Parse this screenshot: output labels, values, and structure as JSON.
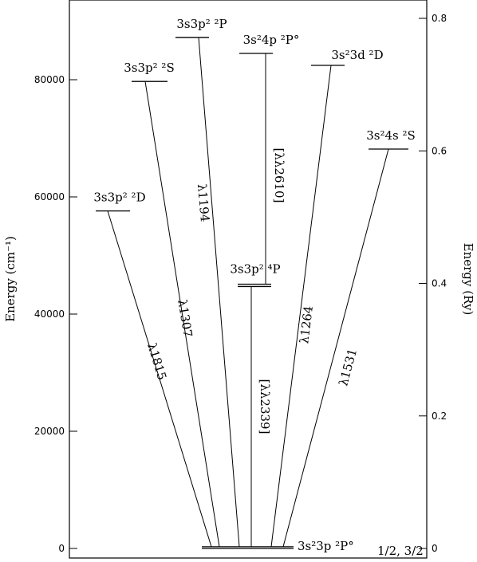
{
  "chart_data": {
    "type": "energy-levels",
    "ylabel": "Energy (cm⁻¹)",
    "y2label": "Energy (Ry)",
    "ylim": [
      -1633,
      93605
    ],
    "yticks": [
      0,
      20000,
      40000,
      60000,
      80000
    ],
    "y2lim": [
      -0.0144,
      0.8277
    ],
    "y2ticks": [
      0,
      0.2,
      0.4,
      0.6,
      0.8
    ],
    "levels": [
      {
        "label": "3s²3p ²P°",
        "sublabel": "1/2, 3/2",
        "energies": [
          0,
          287
        ]
      },
      {
        "label": "3s3p² ²D",
        "energies": [
          57600
        ],
        "transitions": [
          "λ1815"
        ]
      },
      {
        "label": "3s3p² ²S",
        "energies": [
          79700
        ],
        "transitions": [
          "λ1307"
        ]
      },
      {
        "label": "3s3p² ²P",
        "energies": [
          87200
        ],
        "transitions": [
          "λ1194"
        ]
      },
      {
        "label": "3s3p² ⁴P",
        "energies": [
          44700,
          45100
        ],
        "transitions": [
          "[λλ2339]"
        ]
      },
      {
        "label": "3s²4p ²P°",
        "energies": [
          84490
        ],
        "transitions": [
          "[λλ2610]"
        ]
      },
      {
        "label": "3s²3d ²D",
        "energies": [
          82450
        ],
        "transitions": [
          "λ1264"
        ]
      },
      {
        "label": "3s²4s ²S",
        "energies": [
          68160
        ],
        "transitions": [
          "λ1531"
        ]
      }
    ]
  }
}
